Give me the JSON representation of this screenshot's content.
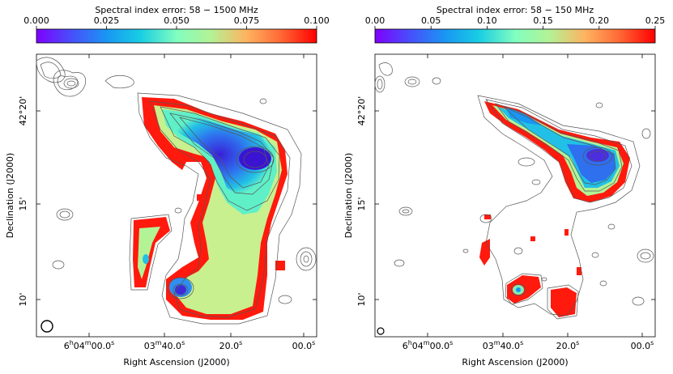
{
  "chart_data": [
    {
      "type": "heatmap",
      "title": "Spectral index error: 58 − 1500 MHz",
      "colorbar": {
        "vmin": 0.0,
        "vmax": 0.1,
        "ticks": [
          "0.000",
          "0.025",
          "0.050",
          "0.075",
          "0.100"
        ]
      },
      "xlabel": "Right Ascension (J2000)",
      "ylabel": "Declination (J2000)",
      "xticks": [
        {
          "base": "6",
          "sup1": "h",
          "mid": "04",
          "sup2": "m",
          "tail": "00.0",
          "sup3": "s"
        },
        {
          "base": "03",
          "sup1": "m",
          "mid": "40.0",
          "sup2": "s",
          "tail": "",
          "sup3": ""
        },
        {
          "base": "20.0",
          "sup1": "s",
          "mid": "",
          "sup2": "",
          "tail": "",
          "sup3": ""
        },
        {
          "base": "00.0",
          "sup1": "s",
          "mid": "",
          "sup2": "",
          "tail": "",
          "sup3": ""
        }
      ],
      "yticks": [
        "42°20'",
        "15'",
        "10'"
      ],
      "colormap": "rainbow"
    },
    {
      "type": "heatmap",
      "title": "Spectral index error: 58 − 150 MHz",
      "colorbar": {
        "vmin": 0.0,
        "vmax": 0.25,
        "ticks": [
          "0.00",
          "0.05",
          "0.10",
          "0.15",
          "0.20",
          "0.25"
        ]
      },
      "xlabel": "Right Ascension (J2000)",
      "ylabel": "Declination (J2000)",
      "xticks": [
        {
          "base": "6",
          "sup1": "h",
          "mid": "04",
          "sup2": "m",
          "tail": "00.0",
          "sup3": "s"
        },
        {
          "base": "03",
          "sup1": "m",
          "mid": "40.0",
          "sup2": "s",
          "tail": "",
          "sup3": ""
        },
        {
          "base": "20.0",
          "sup1": "s",
          "mid": "",
          "sup2": "",
          "tail": "",
          "sup3": ""
        },
        {
          "base": "00.0",
          "sup1": "s",
          "mid": "",
          "sup2": "",
          "tail": "",
          "sup3": ""
        }
      ],
      "yticks": [
        "42°20'",
        "15'",
        "10'"
      ],
      "colormap": "rainbow"
    }
  ]
}
